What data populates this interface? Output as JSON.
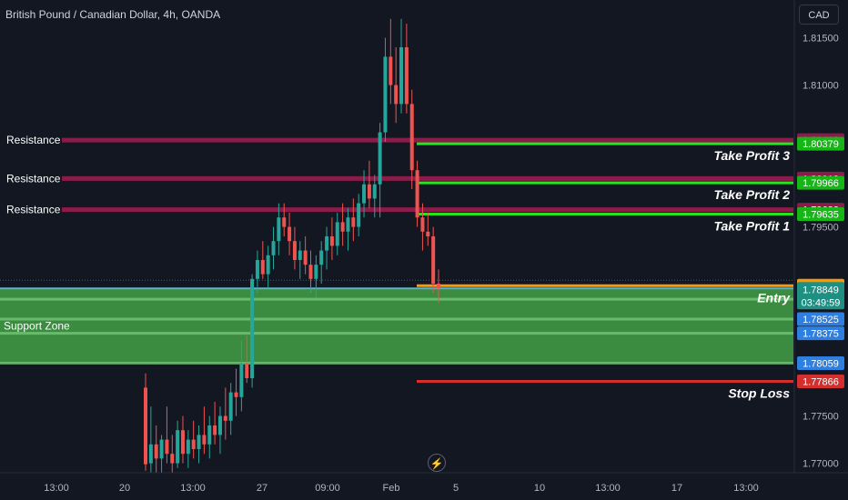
{
  "header": {
    "title": "British Pound / Canadian Dollar, 4h, OANDA",
    "currency": "CAD"
  },
  "icons": {
    "replay": "lightning-icon"
  },
  "colors": {
    "bg": "#131722",
    "up": "#26a69a",
    "down": "#ef5350",
    "resistance": "#8b1c4a",
    "take_profit": "#22e622",
    "entry": "#ff9800",
    "stop": "#d32f2f",
    "support": "#43a047",
    "axis_text": "#b2b5be"
  },
  "chart_data": {
    "type": "candlestick",
    "title": "British Pound / Canadian Dollar, 4h, OANDA",
    "ylim": [
      1.769,
      1.819
    ],
    "y_ticks": [
      "1.81500",
      "1.81000",
      "1.79500",
      "1.77500",
      "1.77000"
    ],
    "x_ticks": [
      "13:00",
      "20",
      "13:00",
      "27",
      "09:00",
      "Feb",
      "5",
      "10",
      "13:00",
      "17",
      "13:00"
    ],
    "resistance_levels": [
      {
        "label": "Resistance",
        "price": 1.80418,
        "tag": "1.80418"
      },
      {
        "label": "Resistance",
        "price": 1.80012,
        "tag": "1.80012"
      },
      {
        "label": "Resistance",
        "price": 1.79682,
        "tag": "1.79682"
      }
    ],
    "take_profits": [
      {
        "label": "Take Profit 3",
        "price": 1.80379,
        "tag": "1.80379"
      },
      {
        "label": "Take Profit 2",
        "price": 1.79966,
        "tag": "1.79966"
      },
      {
        "label": "Take Profit 1",
        "price": 1.79635,
        "tag": "1.79635"
      }
    ],
    "entry": {
      "label": "Entry",
      "price": 1.78878,
      "tag": "1.78878"
    },
    "last_price": {
      "price": 1.78849,
      "tag": "1.78849",
      "countdown": "03:49:59"
    },
    "stop_loss": {
      "label": "Stop Loss",
      "price": 1.77866,
      "tag": "1.77866"
    },
    "support_zone": {
      "label": "Support Zone",
      "top": 1.78849,
      "bottom": 1.78059,
      "lines": [
        {
          "price": 1.78735,
          "tag": "1.78735"
        },
        {
          "price": 1.78525,
          "tag": "1.78525"
        },
        {
          "price": 1.78375,
          "tag": "1.78375"
        },
        {
          "price": 1.78059,
          "tag": "1.78059"
        }
      ]
    },
    "candles": [
      [
        1.778,
        1.7795,
        1.7692,
        1.7699
      ],
      [
        1.77,
        1.776,
        1.769,
        1.772
      ],
      [
        1.772,
        1.774,
        1.769,
        1.7705
      ],
      [
        1.7705,
        1.773,
        1.769,
        1.7725
      ],
      [
        1.7725,
        1.776,
        1.77,
        1.771
      ],
      [
        1.771,
        1.773,
        1.769,
        1.77
      ],
      [
        1.77,
        1.7745,
        1.7695,
        1.7735
      ],
      [
        1.7735,
        1.775,
        1.77,
        1.771
      ],
      [
        1.771,
        1.7735,
        1.7695,
        1.7725
      ],
      [
        1.7725,
        1.7745,
        1.7705,
        1.7715
      ],
      [
        1.7715,
        1.774,
        1.77,
        1.773
      ],
      [
        1.773,
        1.776,
        1.771,
        1.772
      ],
      [
        1.772,
        1.775,
        1.7705,
        1.774
      ],
      [
        1.774,
        1.7765,
        1.772,
        1.773
      ],
      [
        1.773,
        1.776,
        1.771,
        1.775
      ],
      [
        1.775,
        1.778,
        1.7725,
        1.7745
      ],
      [
        1.7745,
        1.7785,
        1.773,
        1.7775
      ],
      [
        1.7775,
        1.78,
        1.775,
        1.777
      ],
      [
        1.777,
        1.783,
        1.7755,
        1.7805
      ],
      [
        1.7805,
        1.7835,
        1.7785,
        1.779
      ],
      [
        1.779,
        1.79,
        1.778,
        1.7895
      ],
      [
        1.7895,
        1.7925,
        1.788,
        1.7915
      ],
      [
        1.7915,
        1.7935,
        1.7895,
        1.79
      ],
      [
        1.79,
        1.793,
        1.7885,
        1.792
      ],
      [
        1.792,
        1.795,
        1.7905,
        1.7935
      ],
      [
        1.7935,
        1.7975,
        1.792,
        1.796
      ],
      [
        1.796,
        1.7975,
        1.794,
        1.795
      ],
      [
        1.795,
        1.7965,
        1.792,
        1.7935
      ],
      [
        1.7935,
        1.795,
        1.7905,
        1.7915
      ],
      [
        1.7915,
        1.7935,
        1.7895,
        1.7925
      ],
      [
        1.7925,
        1.794,
        1.79,
        1.791
      ],
      [
        1.791,
        1.7925,
        1.788,
        1.7895
      ],
      [
        1.7895,
        1.792,
        1.7875,
        1.791
      ],
      [
        1.791,
        1.7935,
        1.789,
        1.7925
      ],
      [
        1.7925,
        1.795,
        1.7905,
        1.794
      ],
      [
        1.794,
        1.796,
        1.7915,
        1.793
      ],
      [
        1.793,
        1.7965,
        1.792,
        1.7955
      ],
      [
        1.7955,
        1.7975,
        1.793,
        1.7945
      ],
      [
        1.7945,
        1.797,
        1.7925,
        1.796
      ],
      [
        1.796,
        1.798,
        1.7935,
        1.795
      ],
      [
        1.795,
        1.7985,
        1.794,
        1.7975
      ],
      [
        1.7975,
        1.801,
        1.796,
        1.7995
      ],
      [
        1.7995,
        1.802,
        1.797,
        1.798
      ],
      [
        1.798,
        1.8005,
        1.796,
        1.7995
      ],
      [
        1.7995,
        1.806,
        1.796,
        1.805
      ],
      [
        1.805,
        1.815,
        1.804,
        1.813
      ],
      [
        1.813,
        1.817,
        1.808,
        1.81
      ],
      [
        1.81,
        1.814,
        1.806,
        1.808
      ],
      [
        1.808,
        1.817,
        1.807,
        1.814
      ],
      [
        1.814,
        1.8165,
        1.807,
        1.808
      ],
      [
        1.808,
        1.8095,
        1.799,
        1.801
      ],
      [
        1.801,
        1.802,
        1.795,
        1.796
      ],
      [
        1.796,
        1.7975,
        1.7925,
        1.7945
      ],
      [
        1.7945,
        1.7965,
        1.793,
        1.794
      ],
      [
        1.794,
        1.795,
        1.788,
        1.789
      ],
      [
        1.789,
        1.7905,
        1.787,
        1.7885
      ]
    ]
  }
}
